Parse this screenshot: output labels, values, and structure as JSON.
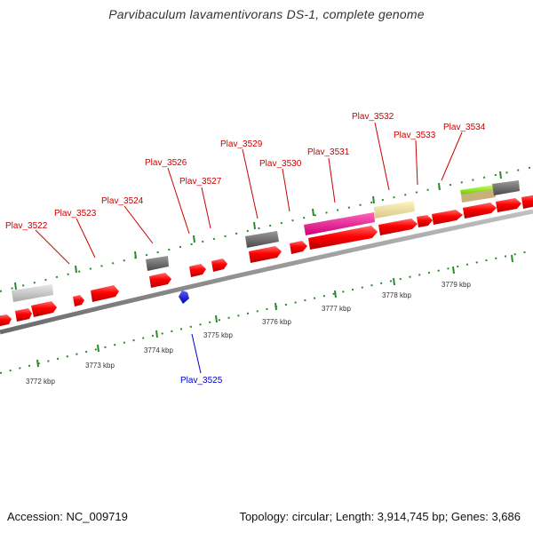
{
  "title": "Parvibaculum lavamentivorans DS-1, complete genome",
  "footer": {
    "accession": "Accession: NC_009719",
    "summary": "Topology: circular; Length: 3,914,745 bp; Genes: 3,686"
  },
  "colors": {
    "forward_gene": "#ff0000",
    "reverse_gene": "#0000ff",
    "label_forward": "#cc0000",
    "label_reverse": "#0000cc",
    "tick": "#2a8a2a",
    "backbone": "#8a8a8a"
  },
  "gene_labels": [
    {
      "name": "Plav_3522",
      "strand": "forward"
    },
    {
      "name": "Plav_3523",
      "strand": "forward"
    },
    {
      "name": "Plav_3524",
      "strand": "forward"
    },
    {
      "name": "Plav_3525",
      "strand": "reverse"
    },
    {
      "name": "Plav_3526",
      "strand": "forward"
    },
    {
      "name": "Plav_3527",
      "strand": "forward"
    },
    {
      "name": "Plav_3529",
      "strand": "forward"
    },
    {
      "name": "Plav_3530",
      "strand": "forward"
    },
    {
      "name": "Plav_3531",
      "strand": "forward"
    },
    {
      "name": "Plav_3532",
      "strand": "forward"
    },
    {
      "name": "Plav_3533",
      "strand": "forward"
    },
    {
      "name": "Plav_3534",
      "strand": "forward"
    }
  ],
  "kbp_labels": [
    "3772 kbp",
    "3773 kbp",
    "3774 kbp",
    "3775 kbp",
    "3776 kbp",
    "3777 kbp",
    "3778 kbp",
    "3779 kbp"
  ]
}
